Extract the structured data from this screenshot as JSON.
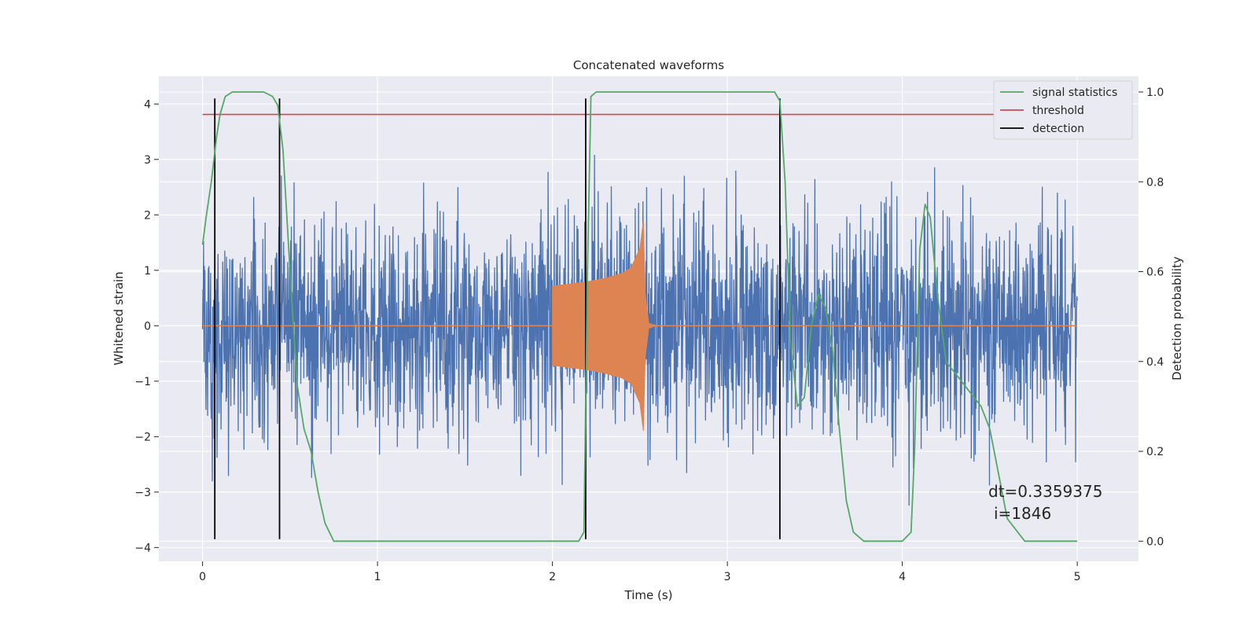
{
  "chart_data": {
    "type": "line",
    "title": "Concatenated waveforms",
    "xlabel": "Time (s)",
    "ylabel": "Whitened strain",
    "ylabel_right": "Detection probability",
    "xlim": [
      -0.25,
      5.35
    ],
    "ylim": [
      -4.25,
      4.5
    ],
    "ylim_right": [
      -0.045,
      1.035
    ],
    "x_ticks": [
      "0",
      "1",
      "2",
      "3",
      "4",
      "5"
    ],
    "y_ticks": [
      "−4",
      "−3",
      "−2",
      "−1",
      "0",
      "1",
      "2",
      "3",
      "4"
    ],
    "y_ticks_right": [
      "0.0",
      "0.2",
      "0.4",
      "0.6",
      "0.8",
      "1.0"
    ],
    "grid": true,
    "legend_position": "top-right",
    "colors": {
      "strain": "#4c72b0",
      "injection": "#dd8452",
      "signal_statistics": "#55a868",
      "threshold": "#c44e52",
      "detection": "#000000",
      "background": "#eaeaf2",
      "grid": "#ffffff"
    },
    "legend": [
      {
        "label": "signal statistics",
        "color": "#55a868"
      },
      {
        "label": "threshold",
        "color": "#c44e52"
      },
      {
        "label": "detection",
        "color": "#000000"
      }
    ],
    "strain_noise": {
      "x_range": [
        0,
        5
      ],
      "typical_envelope": [
        -2.2,
        2.2
      ],
      "peak_range": [
        -3.9,
        4.1
      ]
    },
    "injection_envelope": {
      "x": [
        2.0,
        2.05,
        2.1,
        2.2,
        2.3,
        2.4,
        2.45,
        2.5,
        2.52,
        2.53,
        2.55,
        2.6
      ],
      "amplitude": [
        0.72,
        0.74,
        0.76,
        0.8,
        0.86,
        0.95,
        1.05,
        1.4,
        1.9,
        0.6,
        0.05,
        0.0
      ]
    },
    "threshold": {
      "value": 0.95,
      "x_range": [
        0,
        5
      ]
    },
    "detections": [
      0.07,
      0.44,
      2.19,
      3.3
    ],
    "detection_y_range": [
      -3.85,
      4.1
    ],
    "signal_statistics": {
      "x": [
        0.0,
        0.02,
        0.05,
        0.08,
        0.1,
        0.13,
        0.17,
        0.25,
        0.35,
        0.4,
        0.43,
        0.46,
        0.5,
        0.54,
        0.58,
        0.62,
        0.66,
        0.7,
        0.75,
        1.0,
        1.5,
        2.0,
        2.15,
        2.18,
        2.2,
        2.22,
        2.25,
        2.5,
        3.0,
        3.27,
        3.3,
        3.33,
        3.36,
        3.4,
        3.44,
        3.48,
        3.52,
        3.56,
        3.6,
        3.64,
        3.68,
        3.72,
        3.78,
        3.9,
        4.0,
        4.05,
        4.07,
        4.1,
        4.13,
        4.16,
        4.2,
        4.25,
        4.35,
        4.45,
        4.5,
        4.55,
        4.6,
        4.7,
        5.0
      ],
      "y": [
        0.66,
        0.72,
        0.8,
        0.9,
        0.95,
        0.99,
        1.0,
        1.0,
        1.0,
        0.99,
        0.97,
        0.87,
        0.6,
        0.35,
        0.25,
        0.2,
        0.11,
        0.04,
        0.0,
        0.0,
        0.0,
        0.0,
        0.0,
        0.02,
        0.6,
        0.99,
        1.0,
        1.0,
        1.0,
        1.0,
        0.98,
        0.8,
        0.45,
        0.3,
        0.32,
        0.48,
        0.55,
        0.52,
        0.43,
        0.25,
        0.09,
        0.02,
        0.0,
        0.0,
        0.0,
        0.02,
        0.2,
        0.65,
        0.75,
        0.72,
        0.55,
        0.4,
        0.35,
        0.3,
        0.25,
        0.15,
        0.05,
        0.0,
        0.0
      ]
    },
    "annotations": [
      "dt=0.3359375",
      "i=1846"
    ]
  }
}
